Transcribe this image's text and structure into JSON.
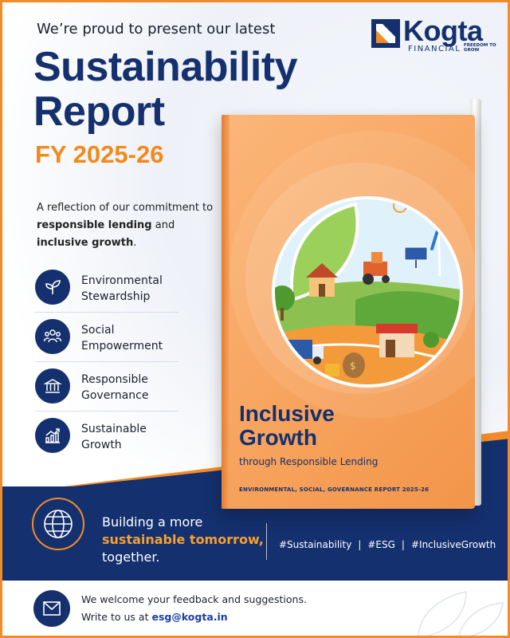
{
  "header": {
    "intro": "We’re proud to present our latest",
    "title_line1": "Sustainability",
    "title_line2": "Report",
    "fy": "FY 2025-26"
  },
  "logo": {
    "name": "Kogta",
    "sub": "FINANCIAL",
    "tag_line1": "FREEDOM TO",
    "tag_line2": "GROW"
  },
  "description": {
    "part1": "A reflection of our commitment to ",
    "bold1": "responsible lending",
    "part2": " and ",
    "bold2": "inclusive growth",
    "part3": "."
  },
  "features": [
    {
      "label": "Environmental Stewardship",
      "icon": "leaf-icon"
    },
    {
      "label": "Social Empowerment",
      "icon": "people-icon"
    },
    {
      "label": "Responsible Governance",
      "icon": "building-icon"
    },
    {
      "label": "Sustainable Growth",
      "icon": "growth-chart-icon"
    }
  ],
  "book": {
    "title_line1": "Inclusive",
    "title_line2": "Growth",
    "subtitle": "through Responsible Lending",
    "footer": "ENVIRONMENTAL, SOCIAL, GOVERNANCE REPORT 2025-26"
  },
  "band": {
    "line1": "Building a more",
    "line2": "sustainable tomorrow,",
    "line3": "together.",
    "tags": [
      "#Sustainability",
      "#ESG",
      "#InclusiveGrowth"
    ]
  },
  "contact": {
    "line1": "We welcome your feedback and suggestions.",
    "line2": "Write to us at",
    "email": "esg@kogta.in"
  },
  "colors": {
    "navy": "#14306e",
    "orange": "#f08a1c",
    "cover": "#f7a25c"
  }
}
